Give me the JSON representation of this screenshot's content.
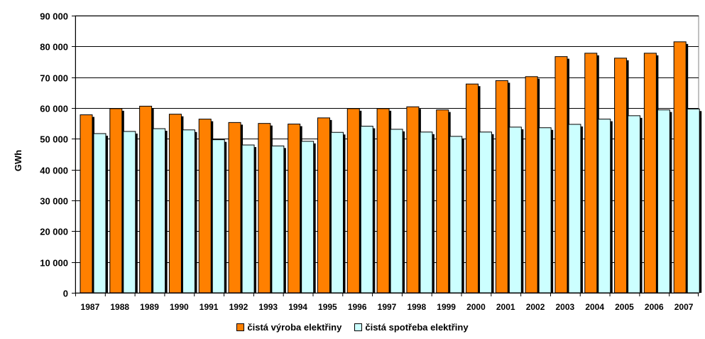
{
  "chart_data": {
    "type": "bar",
    "ylabel": "GWh",
    "xlabel": "",
    "ylim": [
      0,
      90000
    ],
    "yticks": [
      0,
      10000,
      20000,
      30000,
      40000,
      50000,
      60000,
      70000,
      80000,
      90000
    ],
    "ytick_labels": [
      "0",
      "10 000",
      "20 000",
      "30 000",
      "40 000",
      "50 000",
      "60 000",
      "70 000",
      "80 000",
      "90 000"
    ],
    "grid": true,
    "legend_position": "bottom",
    "categories": [
      "1987",
      "1988",
      "1989",
      "1990",
      "1991",
      "1992",
      "1993",
      "1994",
      "1995",
      "1996",
      "1997",
      "1998",
      "1999",
      "2000",
      "2001",
      "2002",
      "2003",
      "2004",
      "2005",
      "2006",
      "2007"
    ],
    "series": [
      {
        "name": "čistá výroba elektřiny",
        "color": "#ff8000",
        "values": [
          57800,
          59800,
          60600,
          58000,
          56400,
          55300,
          55000,
          54800,
          56800,
          59800,
          59800,
          60400,
          59400,
          67800,
          68900,
          70200,
          76700,
          77800,
          76200,
          77800,
          81500
        ]
      },
      {
        "name": "čistá spotřeba elektřiny",
        "color": "#ccffff",
        "values": [
          51700,
          52400,
          53300,
          52900,
          49700,
          48000,
          47700,
          49200,
          52100,
          54100,
          53100,
          52200,
          50800,
          52200,
          53800,
          53600,
          54700,
          56400,
          57500,
          59400,
          59700
        ]
      }
    ]
  }
}
